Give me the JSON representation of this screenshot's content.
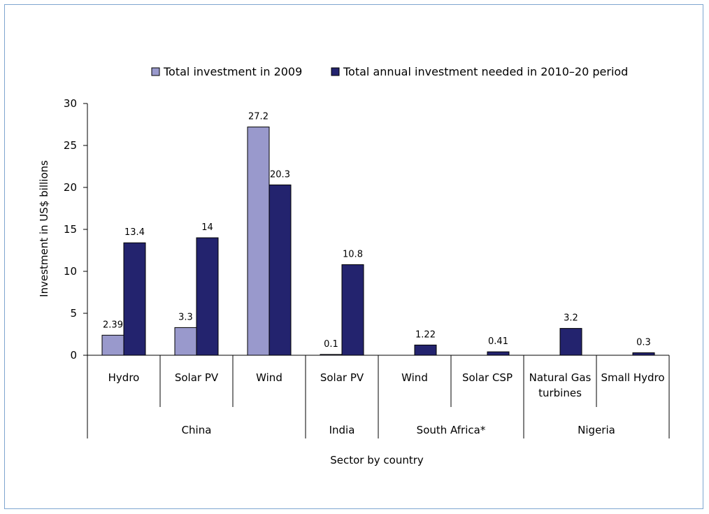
{
  "chart_data": {
    "type": "bar",
    "xlabel": "Sector by country",
    "ylabel": "Investment in US$ billions",
    "ylim": [
      0,
      30
    ],
    "yticks": [
      0,
      5,
      10,
      15,
      20,
      25,
      30
    ],
    "grid": false,
    "legend_position": "top",
    "categories": [
      "Hydro",
      "Solar PV",
      "Wind",
      "Solar PV",
      "Wind",
      "Solar CSP",
      "Natural Gas turbines",
      "Small Hydro"
    ],
    "category_lines": [
      [
        "Hydro"
      ],
      [
        "Solar PV"
      ],
      [
        "Wind"
      ],
      [
        "Solar PV"
      ],
      [
        "Wind"
      ],
      [
        "Solar CSP"
      ],
      [
        "Natural Gas",
        "turbines"
      ],
      [
        "Small Hydro"
      ]
    ],
    "groups": [
      {
        "name": "China",
        "span": [
          0,
          2
        ]
      },
      {
        "name": "India",
        "span": [
          3,
          3
        ]
      },
      {
        "name": "South Africa*",
        "span": [
          4,
          5
        ]
      },
      {
        "name": "Nigeria",
        "span": [
          6,
          7
        ]
      }
    ],
    "series": [
      {
        "name": "Total investment in 2009",
        "color": "#9999cc",
        "values": [
          2.39,
          3.3,
          27.2,
          0.1,
          null,
          null,
          null,
          null
        ],
        "labels": [
          "2.39",
          "3.3",
          "27.2",
          "0.1",
          "",
          "",
          "",
          ""
        ]
      },
      {
        "name": "Total annual investment needed in 2010–20 period",
        "color": "#23236e",
        "values": [
          13.4,
          14,
          20.3,
          10.8,
          1.22,
          0.41,
          3.2,
          0.3
        ],
        "labels": [
          "13.4",
          "14",
          "20.3",
          "10.8",
          "1.22",
          "0.41",
          "3.2",
          "0.3"
        ]
      }
    ]
  }
}
